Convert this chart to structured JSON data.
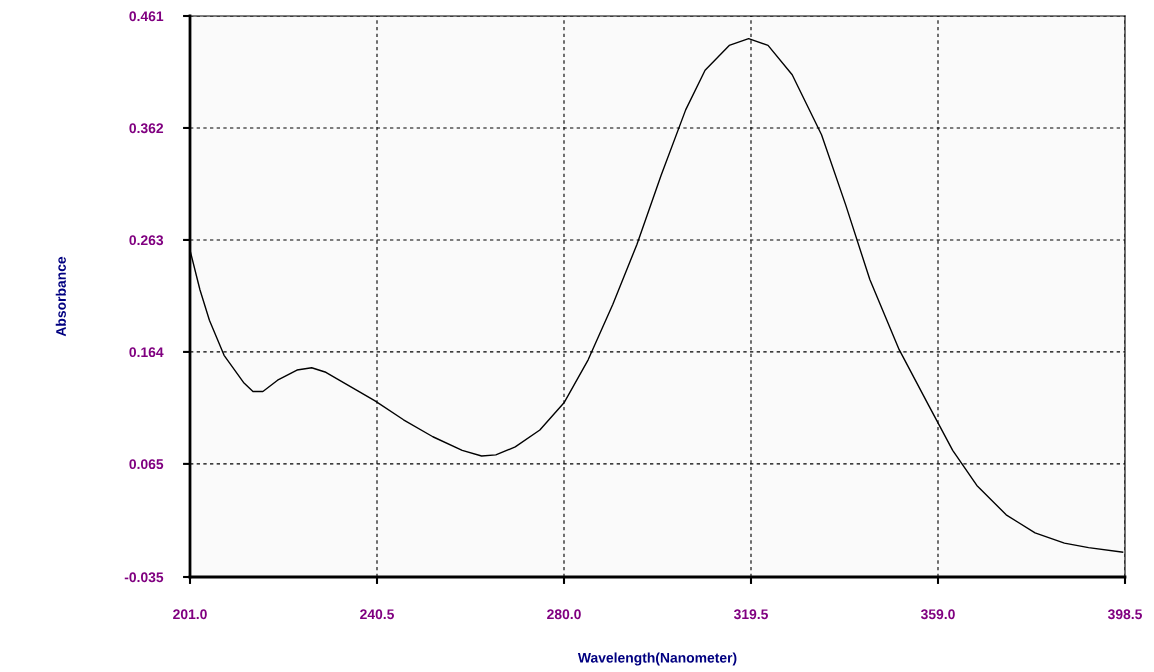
{
  "chart_data": {
    "type": "line",
    "xlabel": "Wavelength(Nanometer)",
    "ylabel": "Absorbance",
    "x": [
      201,
      203.1,
      205.1,
      208.2,
      212.3,
      214.3,
      216.4,
      219.5,
      223.6,
      226.7,
      229.7,
      233.8,
      240.0,
      246.1,
      252.3,
      258.5,
      262.6,
      265.6,
      269.7,
      274.9,
      280.0,
      285.1,
      290.3,
      295.4,
      300.5,
      305.7,
      309.8,
      314.9,
      319.0,
      323.1,
      328.2,
      334.4,
      339.5,
      344.6,
      350.8,
      357.0,
      362.1,
      367.2,
      373.4,
      379.5,
      385.7,
      390.8,
      398.0
    ],
    "series": [
      {
        "color": "#000000",
        "values": [
          0.254,
          0.219,
          0.192,
          0.161,
          0.137,
          0.129,
          0.129,
          0.139,
          0.148,
          0.15,
          0.146,
          0.136,
          0.121,
          0.104,
          0.089,
          0.077,
          0.072,
          0.073,
          0.08,
          0.095,
          0.119,
          0.157,
          0.206,
          0.259,
          0.32,
          0.378,
          0.413,
          0.435,
          0.441,
          0.435,
          0.409,
          0.356,
          0.294,
          0.228,
          0.166,
          0.117,
          0.077,
          0.046,
          0.02,
          0.004,
          -0.005,
          -0.009,
          -0.013
        ]
      }
    ],
    "xlim": [
      201.0,
      398.5
    ],
    "xticks": [
      {
        "value": 201.0,
        "label": "201.0"
      },
      {
        "value": 240.5,
        "label": "240.5"
      },
      {
        "value": 280.0,
        "label": "280.0"
      },
      {
        "value": 319.5,
        "label": "319.5"
      },
      {
        "value": 359.0,
        "label": "359.0"
      },
      {
        "value": 398.5,
        "label": "398.5"
      }
    ],
    "ylim": [
      -0.035,
      0.461
    ],
    "yticks": [
      -0.035,
      0.065,
      0.164,
      0.263,
      0.362,
      0.461
    ],
    "grid": true,
    "line_style": "solid",
    "marker": "none"
  }
}
